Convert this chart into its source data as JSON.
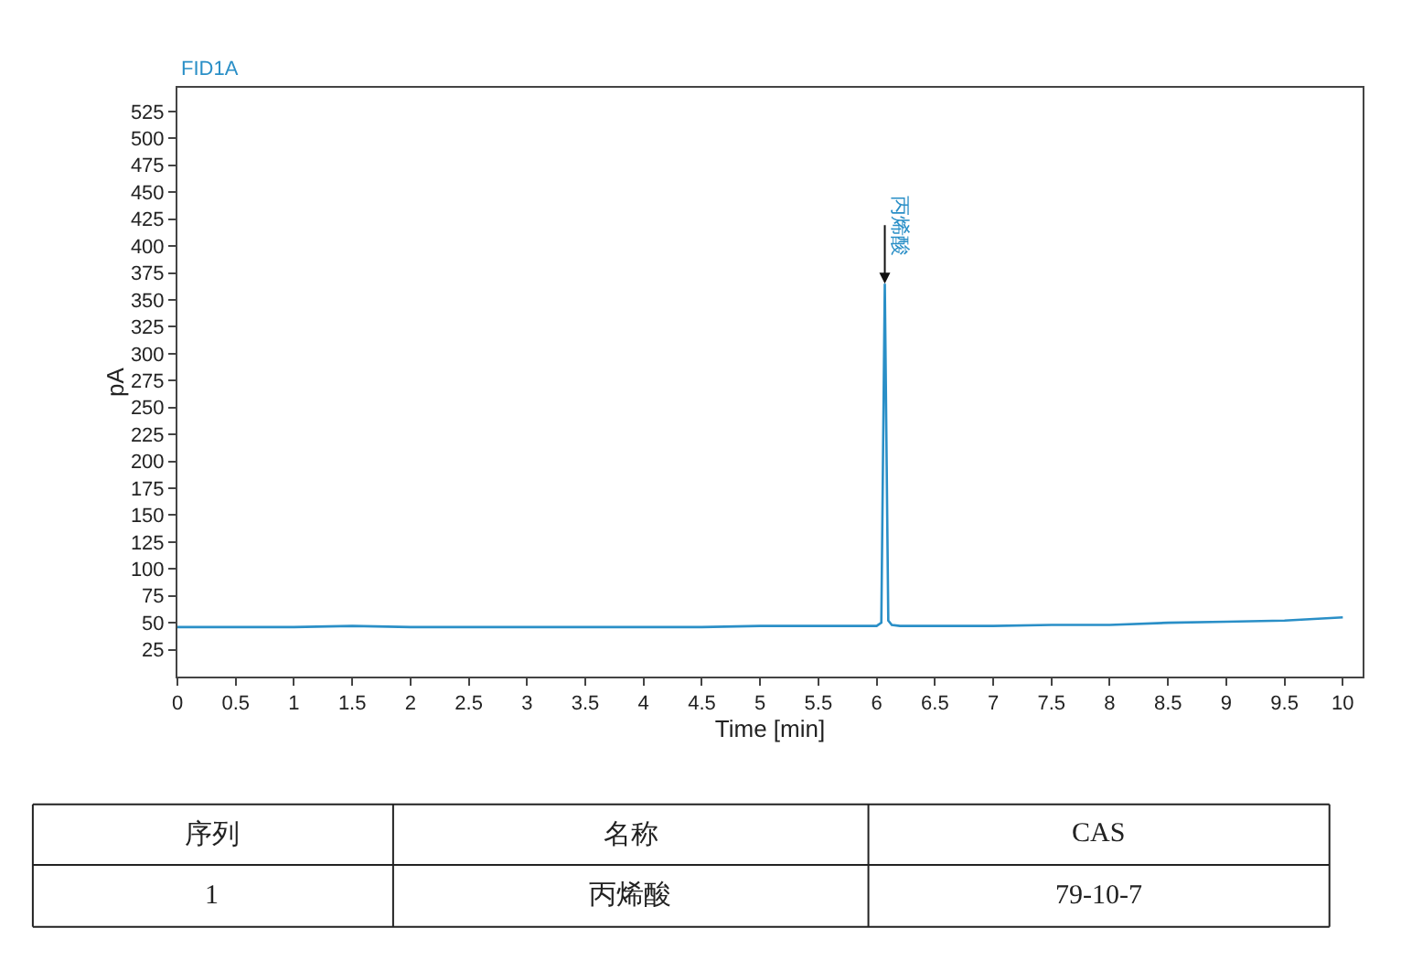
{
  "chart_data": {
    "type": "line",
    "title": "FID1A",
    "xlabel": "Time [min]",
    "ylabel": "pA",
    "x": [
      0,
      0.5,
      1,
      1.5,
      2,
      2.5,
      3,
      3.5,
      4,
      4.5,
      5,
      5.5,
      5.9,
      6.0,
      6.04,
      6.07,
      6.1,
      6.13,
      6.2,
      6.5,
      7,
      7.5,
      8,
      8.5,
      9,
      9.5,
      10
    ],
    "series": [
      {
        "color": "#2a8fc7",
        "values": [
          46,
          46,
          46,
          47,
          46,
          46,
          46,
          46,
          46,
          46,
          47,
          47,
          47,
          47,
          50,
          365,
          52,
          48,
          47,
          47,
          47,
          48,
          48,
          50,
          51,
          52,
          55
        ]
      }
    ],
    "xlim": [
      0,
      10.17
    ],
    "ylim": [
      0,
      547
    ],
    "xticks": [
      0,
      0.5,
      1,
      1.5,
      2,
      2.5,
      3,
      3.5,
      4,
      4.5,
      5,
      5.5,
      6,
      6.5,
      7,
      7.5,
      8,
      8.5,
      9,
      9.5,
      10
    ],
    "yticks": [
      25,
      50,
      75,
      100,
      125,
      150,
      175,
      200,
      225,
      250,
      275,
      300,
      325,
      350,
      375,
      400,
      425,
      450,
      475,
      500,
      525
    ],
    "legend": false,
    "marker": "none",
    "line_style": "solid",
    "annotations": [
      {
        "text": "丙烯酸",
        "x": 6.07,
        "y": 365
      },
      "序列",
      "名称",
      "CAS",
      "1",
      "丙烯酸",
      "79-10-7"
    ]
  }
}
